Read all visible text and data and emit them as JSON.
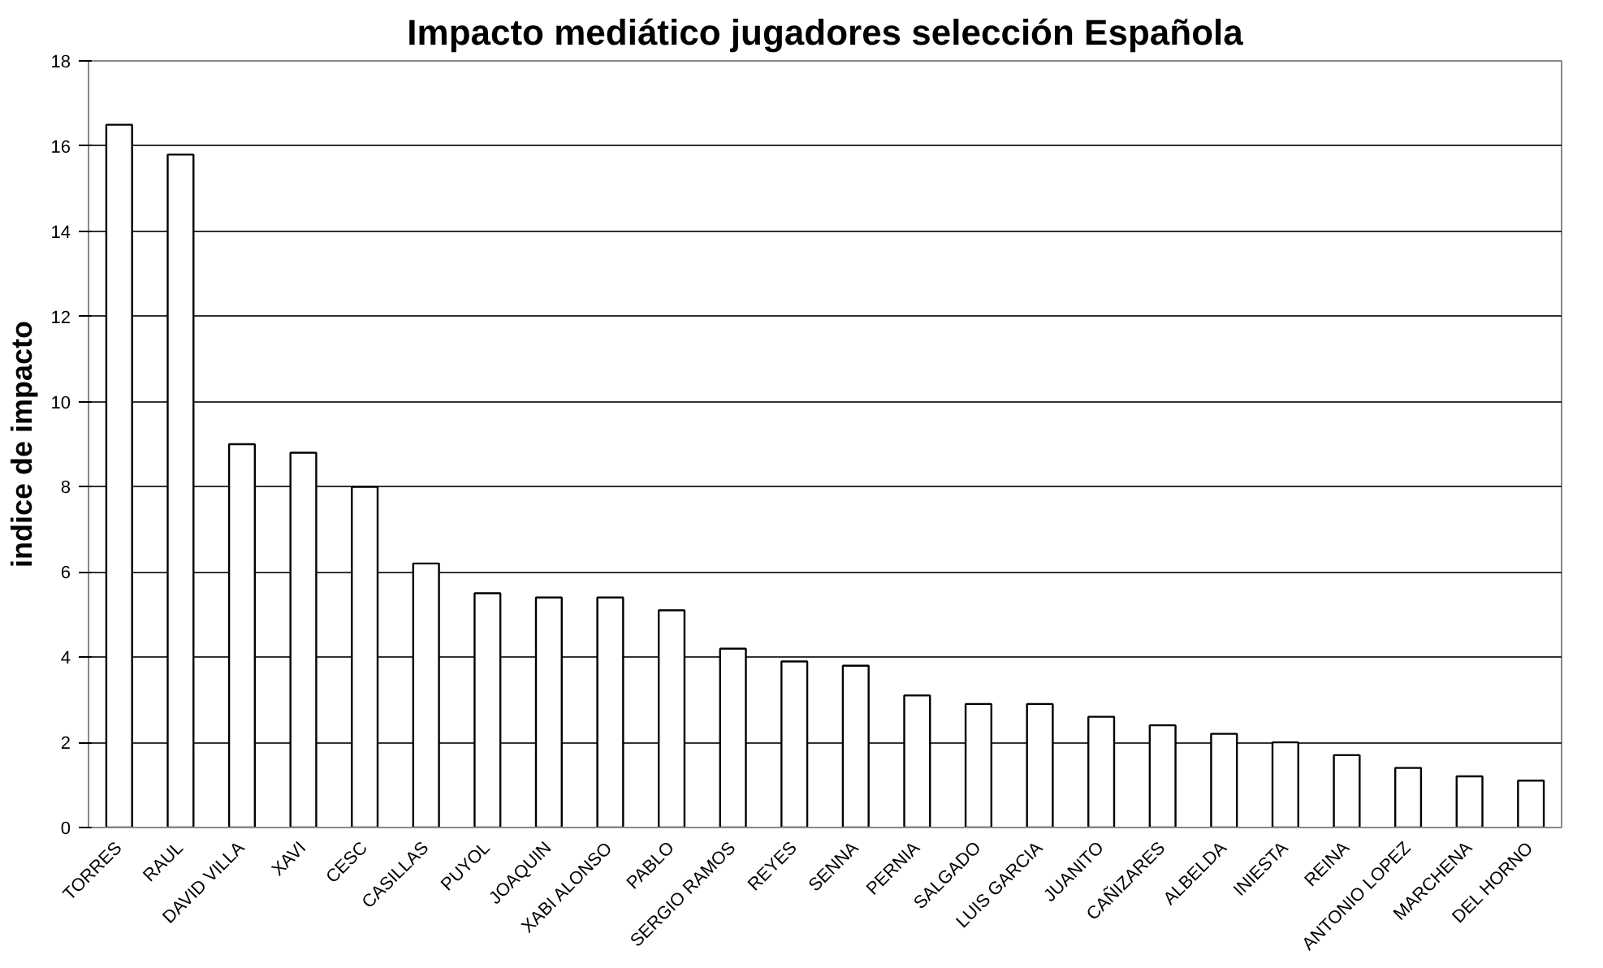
{
  "chart_data": {
    "type": "bar",
    "title": "Impacto mediático jugadores selección Española",
    "ylabel": "indice de impacto",
    "categories": [
      "TORRES",
      "RAUL",
      "DAVID VILLA",
      "XAVI",
      "CESC",
      "CASILLAS",
      "PUYOL",
      "JOAQUIN",
      "XABI ALONSO",
      "PABLO",
      "SERGIO RAMOS",
      "REYES",
      "SENNA",
      "PERNIA",
      "SALGADO",
      "LUIS GARCIA",
      "JUANITO",
      "CAÑIZARES",
      "ALBELDA",
      "INIESTA",
      "REINA",
      "ANTONIO LOPEZ",
      "MARCHENA",
      "DEL HORNO"
    ],
    "values": [
      16.5,
      15.8,
      9.0,
      8.8,
      8.0,
      6.2,
      5.5,
      5.4,
      5.4,
      5.1,
      4.2,
      3.9,
      3.8,
      3.1,
      2.9,
      2.9,
      2.6,
      2.4,
      2.2,
      2.0,
      1.7,
      1.4,
      1.2,
      1.1
    ],
    "color": "#ffffff",
    "ylim": [
      0,
      18
    ],
    "yticks": [
      0,
      2,
      4,
      6,
      8,
      10,
      12,
      14,
      16,
      18
    ],
    "grid": "y"
  }
}
